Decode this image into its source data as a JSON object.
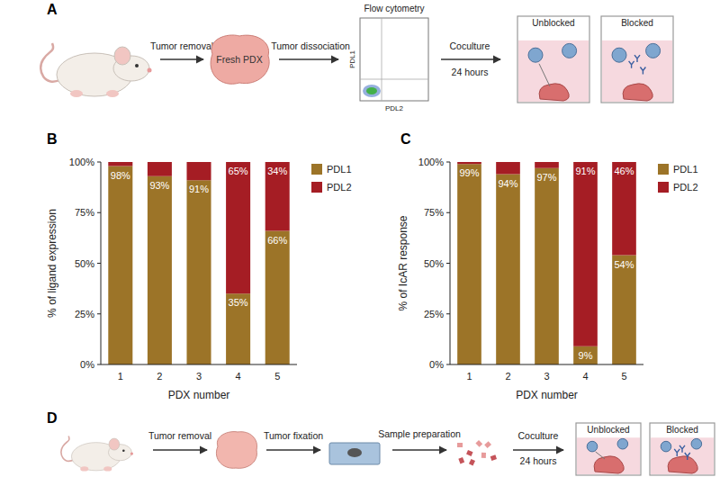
{
  "panel_labels": [
    "A",
    "B",
    "C",
    "D"
  ],
  "panel_a": {
    "arrow_1": "Tumor removal",
    "sample": "Fresh PDX",
    "arrow_2": "Tumor dissociation",
    "flow_title": "Flow cytometry",
    "flow_y": "PDL1",
    "flow_x": "PDL2",
    "arrow_3": [
      "Coculture",
      "24 hours"
    ],
    "wells": [
      "Unblocked",
      "Blocked"
    ]
  },
  "panel_d": {
    "arrow_1": "Tumor removal",
    "arrow_2": "Tumor fixation",
    "arrow_3": "Sample preparation",
    "arrow_4": [
      "Coculture",
      "24 hours"
    ],
    "wells": [
      "Unblocked",
      "Blocked"
    ]
  },
  "chart_data": [
    {
      "type": "bar",
      "stacked": true,
      "data_labels": true,
      "grid": false,
      "legend": "right",
      "categories": [
        "1",
        "2",
        "3",
        "4",
        "5"
      ],
      "x_label": "PDX number",
      "y_label": "% of ligand expression",
      "ylim": [
        0,
        100
      ],
      "yticks": [
        {
          "value": 0,
          "label": "0%"
        },
        {
          "value": 25,
          "label": "25%"
        },
        {
          "value": 50,
          "label": "50%"
        },
        {
          "value": 75,
          "label": "75%"
        },
        {
          "value": 100,
          "label": "100%"
        }
      ],
      "series": [
        {
          "name": "PDL1",
          "color": "#9c7428",
          "values": [
            98,
            93,
            91,
            35,
            66
          ],
          "value_labels": [
            "98%",
            "93%",
            "91%",
            "35%",
            "66%"
          ]
        },
        {
          "name": "PDL2",
          "color": "#a51d24",
          "values": [
            2,
            7,
            9,
            65,
            34
          ],
          "value_labels": [
            null,
            null,
            null,
            "65%",
            "34%"
          ]
        }
      ]
    },
    {
      "type": "bar",
      "stacked": true,
      "data_labels": true,
      "grid": false,
      "legend": "right",
      "categories": [
        "1",
        "2",
        "3",
        "4",
        "5"
      ],
      "x_label": "PDX number",
      "y_label": "% of IcAR response",
      "ylim": [
        0,
        100
      ],
      "yticks": [
        {
          "value": 0,
          "label": "0%"
        },
        {
          "value": 25,
          "label": "25%"
        },
        {
          "value": 50,
          "label": "50%"
        },
        {
          "value": 75,
          "label": "75%"
        },
        {
          "value": 100,
          "label": "100%"
        }
      ],
      "series": [
        {
          "name": "PDL1",
          "color": "#9c7428",
          "values": [
            99,
            94,
            97,
            9,
            54
          ],
          "value_labels": [
            "99%",
            "94%",
            "97%",
            "9%",
            "54%"
          ]
        },
        {
          "name": "PDL2",
          "color": "#a51d24",
          "values": [
            1,
            6,
            3,
            91,
            46
          ],
          "value_labels": [
            null,
            null,
            null,
            "91%",
            "46%"
          ]
        }
      ]
    }
  ]
}
